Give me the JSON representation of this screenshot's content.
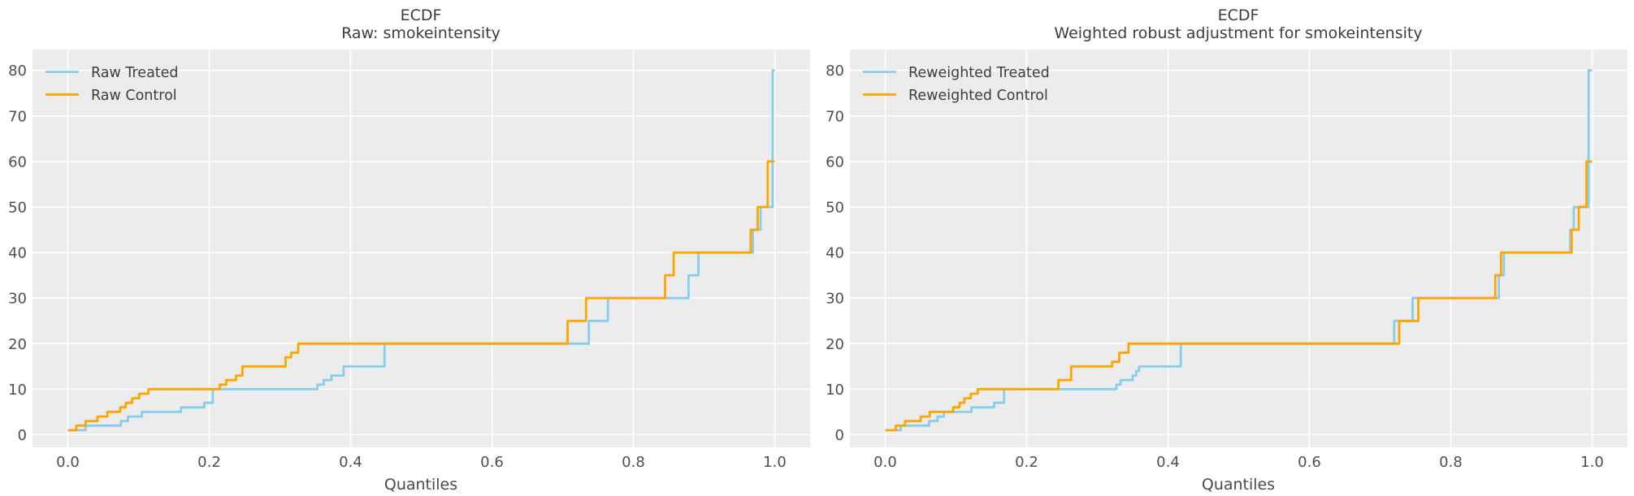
{
  "figure": {
    "background": "#ffffff",
    "plot_background": "#ececec",
    "grid_color": "#ffffff",
    "title_color": "#3d3d3d",
    "tick_color": "#4f4f4f",
    "treated_color": "#87ceeb",
    "control_color": "#ffa500"
  },
  "axes": {
    "xlabel": "Quantiles",
    "x_tick_labels": [
      "0.0",
      "0.2",
      "0.4",
      "0.6",
      "0.8",
      "1.0"
    ],
    "x_tick_values": [
      0.0,
      0.2,
      0.4,
      0.6,
      0.8,
      1.0
    ],
    "y_tick_labels": [
      "0",
      "10",
      "20",
      "30",
      "40",
      "50",
      "60",
      "70",
      "80"
    ],
    "y_tick_values": [
      0,
      10,
      20,
      30,
      40,
      50,
      60,
      70,
      80
    ],
    "xlim": [
      0.0,
      1.0
    ],
    "ylim": [
      0,
      80
    ],
    "grid": true
  },
  "chart_data": [
    {
      "type": "line",
      "title": "ECDF",
      "subtitle": "Raw: smokeintensity",
      "xlabel": "Quantiles",
      "legend_position": "upper left",
      "xlim": [
        0.0,
        1.0
      ],
      "ylim": [
        0,
        80
      ],
      "series": [
        {
          "name": "Raw Treated",
          "color": "#87ceeb",
          "step_points": [
            [
              0,
              1
            ],
            [
              0.025,
              2
            ],
            [
              0.075,
              3
            ],
            [
              0.085,
              4
            ],
            [
              0.105,
              5
            ],
            [
              0.16,
              6
            ],
            [
              0.193,
              7
            ],
            [
              0.205,
              10
            ],
            [
              0.353,
              11
            ],
            [
              0.362,
              12
            ],
            [
              0.373,
              13
            ],
            [
              0.39,
              15
            ],
            [
              0.448,
              20
            ],
            [
              0.737,
              25
            ],
            [
              0.764,
              30
            ],
            [
              0.878,
              35
            ],
            [
              0.892,
              40
            ],
            [
              0.969,
              45
            ],
            [
              0.98,
              50
            ],
            [
              0.997,
              80
            ]
          ]
        },
        {
          "name": "Raw Control",
          "color": "#ffa500",
          "step_points": [
            [
              0,
              1
            ],
            [
              0.012,
              2
            ],
            [
              0.025,
              3
            ],
            [
              0.042,
              4
            ],
            [
              0.056,
              5
            ],
            [
              0.074,
              6
            ],
            [
              0.082,
              7
            ],
            [
              0.091,
              8
            ],
            [
              0.101,
              9
            ],
            [
              0.114,
              10
            ],
            [
              0.215,
              11
            ],
            [
              0.224,
              12
            ],
            [
              0.238,
              13
            ],
            [
              0.247,
              15
            ],
            [
              0.308,
              17
            ],
            [
              0.316,
              18
            ],
            [
              0.326,
              20
            ],
            [
              0.707,
              25
            ],
            [
              0.733,
              30
            ],
            [
              0.845,
              35
            ],
            [
              0.857,
              40
            ],
            [
              0.966,
              45
            ],
            [
              0.976,
              50
            ],
            [
              0.99,
              60
            ]
          ]
        }
      ]
    },
    {
      "type": "line",
      "title": "ECDF",
      "subtitle": "Weighted robust adjustment for smokeintensity",
      "xlabel": "Quantiles",
      "legend_position": "upper left",
      "xlim": [
        0.0,
        1.0
      ],
      "ylim": [
        0,
        80
      ],
      "series": [
        {
          "name": "Reweighted Treated",
          "color": "#87ceeb",
          "step_points": [
            [
              0,
              1
            ],
            [
              0.022,
              2
            ],
            [
              0.062,
              3
            ],
            [
              0.074,
              4
            ],
            [
              0.083,
              5
            ],
            [
              0.122,
              6
            ],
            [
              0.154,
              7
            ],
            [
              0.168,
              10
            ],
            [
              0.327,
              11
            ],
            [
              0.333,
              12
            ],
            [
              0.35,
              13
            ],
            [
              0.355,
              14
            ],
            [
              0.359,
              15
            ],
            [
              0.418,
              20
            ],
            [
              0.72,
              25
            ],
            [
              0.746,
              30
            ],
            [
              0.868,
              35
            ],
            [
              0.875,
              40
            ],
            [
              0.969,
              45
            ],
            [
              0.974,
              50
            ],
            [
              0.995,
              80
            ]
          ]
        },
        {
          "name": "Reweighted Control",
          "color": "#ffa500",
          "step_points": [
            [
              0,
              1
            ],
            [
              0.015,
              2
            ],
            [
              0.028,
              3
            ],
            [
              0.05,
              4
            ],
            [
              0.063,
              5
            ],
            [
              0.096,
              6
            ],
            [
              0.105,
              7
            ],
            [
              0.112,
              8
            ],
            [
              0.121,
              9
            ],
            [
              0.131,
              10
            ],
            [
              0.245,
              12
            ],
            [
              0.263,
              15
            ],
            [
              0.321,
              16
            ],
            [
              0.331,
              18
            ],
            [
              0.344,
              20
            ],
            [
              0.727,
              25
            ],
            [
              0.754,
              30
            ],
            [
              0.863,
              35
            ],
            [
              0.871,
              40
            ],
            [
              0.971,
              45
            ],
            [
              0.981,
              50
            ],
            [
              0.992,
              60
            ]
          ]
        }
      ]
    }
  ]
}
